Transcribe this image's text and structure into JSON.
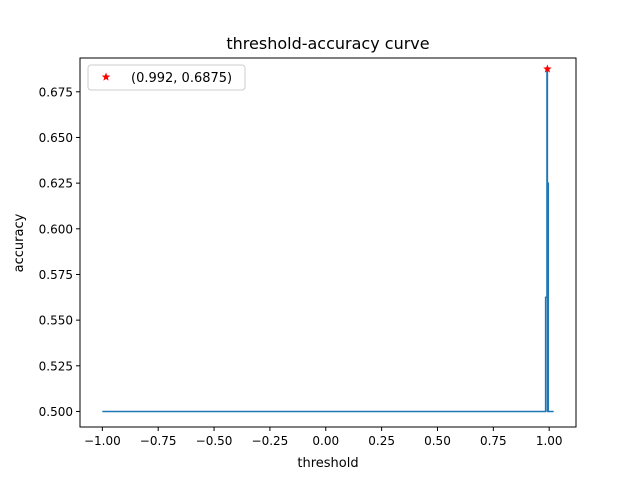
{
  "chart_data": {
    "type": "line",
    "title": "threshold-accuracy curve",
    "xlabel": "threshold",
    "ylabel": "accuracy",
    "xlim": [
      -1.1,
      1.12
    ],
    "ylim": [
      0.4915,
      0.6935
    ],
    "xticks": [
      -1.0,
      -0.75,
      -0.5,
      -0.25,
      0.0,
      0.25,
      0.5,
      0.75,
      1.0
    ],
    "xtick_labels": [
      "−1.00",
      "−0.75",
      "−0.50",
      "−0.25",
      "0.00",
      "0.25",
      "0.50",
      "0.75",
      "1.00"
    ],
    "yticks": [
      0.5,
      0.525,
      0.55,
      0.575,
      0.6,
      0.625,
      0.65,
      0.675
    ],
    "ytick_labels": [
      "0.500",
      "0.525",
      "0.550",
      "0.575",
      "0.600",
      "0.625",
      "0.650",
      "0.675"
    ],
    "grid": false,
    "legend_position": "upper left",
    "series": [
      {
        "color": "#1f77b4",
        "x": [
          -1.0,
          0.98,
          0.984,
          0.984,
          0.99,
          0.99,
          0.992,
          0.992,
          0.994,
          0.994,
          0.996,
          0.996,
          0.998,
          0.998,
          1.0,
          1.0,
          1.02
        ],
        "y": [
          0.5,
          0.5,
          0.5,
          0.5625,
          0.5625,
          0.6875,
          0.6875,
          0.5,
          0.5,
          0.625,
          0.625,
          0.5,
          0.5,
          0.5,
          0.5,
          0.5,
          0.5
        ]
      }
    ],
    "best_point": {
      "label": "(0.992, 0.6875)",
      "x": 0.992,
      "y": 0.6875,
      "marker": "star",
      "color": "#ff0000"
    }
  }
}
